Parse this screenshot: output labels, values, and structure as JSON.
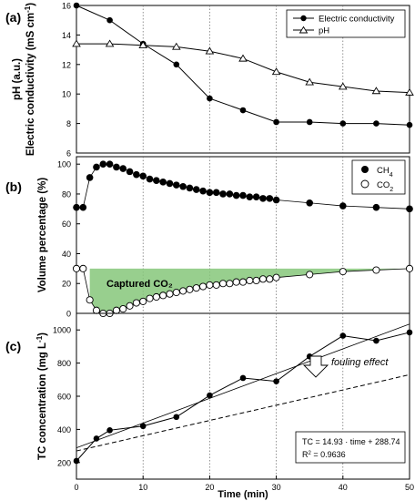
{
  "chart_data": [
    {
      "panel_label": "(a)",
      "type": "line",
      "ylabel": "pH (a.u.)\nElectric conductivity (mS cm⁻¹)",
      "ylabel_lines": [
        "pH (a.u.)",
        "Electric conductivity (mS cm",
        "-1",
        ")"
      ],
      "xlim": [
        0,
        50
      ],
      "ylim": [
        6,
        16
      ],
      "yticks": [
        6,
        8,
        10,
        12,
        14,
        16
      ],
      "grid_x": [
        10,
        20,
        30,
        40
      ],
      "legend": "top-right",
      "series": [
        {
          "name": "Electric conductivity",
          "marker": "filled-circle",
          "x": [
            0,
            5,
            10,
            15,
            20,
            25,
            30,
            35,
            40,
            45,
            50
          ],
          "y": [
            16.0,
            15.0,
            13.4,
            12.0,
            9.7,
            8.9,
            8.1,
            8.1,
            8.0,
            8.0,
            7.9
          ]
        },
        {
          "name": "pH",
          "marker": "open-triangle",
          "x": [
            0,
            5,
            10,
            15,
            20,
            25,
            30,
            35,
            40,
            45,
            50
          ],
          "y": [
            13.4,
            13.4,
            13.3,
            13.2,
            12.9,
            12.4,
            11.5,
            10.8,
            10.5,
            10.2,
            10.1
          ]
        }
      ]
    },
    {
      "panel_label": "(b)",
      "type": "scatter",
      "ylabel": "Volume percentage (%)",
      "xlim": [
        0,
        50
      ],
      "ylim": [
        0,
        105
      ],
      "yticks": [
        0,
        20,
        40,
        60,
        80,
        100
      ],
      "grid_x": [
        10,
        20,
        30,
        40
      ],
      "legend": "top-right",
      "annotation": "Captured CO₂",
      "series": [
        {
          "name": "CH₄",
          "name_base": "CH",
          "name_sub": "4",
          "marker": "filled-circle",
          "x": [
            0,
            1,
            2,
            3,
            4,
            5,
            6,
            7,
            8,
            9,
            10,
            11,
            12,
            13,
            14,
            15,
            16,
            17,
            18,
            19,
            20,
            21,
            22,
            23,
            24,
            25,
            26,
            27,
            28,
            29,
            30,
            35,
            40,
            45,
            50
          ],
          "y": [
            71,
            71,
            91,
            98,
            100,
            100,
            98,
            97,
            95,
            93,
            92,
            90,
            89,
            88,
            87,
            86,
            85,
            84,
            83,
            82,
            81,
            81,
            80,
            80,
            79,
            79,
            78,
            78,
            77,
            77,
            76,
            74,
            72,
            71,
            70
          ]
        },
        {
          "name": "CO₂",
          "name_base": "CO",
          "name_sub": "2",
          "marker": "open-circle",
          "x": [
            0,
            1,
            2,
            3,
            4,
            5,
            6,
            7,
            8,
            9,
            10,
            11,
            12,
            13,
            14,
            15,
            16,
            17,
            18,
            19,
            20,
            21,
            22,
            23,
            24,
            25,
            26,
            27,
            28,
            29,
            30,
            35,
            40,
            45,
            50
          ],
          "y": [
            30,
            30,
            9,
            2,
            0,
            0,
            2,
            3,
            5,
            7,
            8,
            10,
            11,
            12,
            13,
            14,
            15,
            16,
            17,
            18,
            19,
            19,
            20,
            20,
            21,
            21,
            22,
            22,
            23,
            23,
            24,
            26,
            28,
            29,
            30
          ]
        }
      ]
    },
    {
      "panel_label": "(c)",
      "type": "line",
      "ylabel": "TC concentration (mg L⁻¹)",
      "ylabel_lines": [
        "TC concentration (mg L",
        "-1",
        ")"
      ],
      "xlabel": "Time (min)",
      "xlim": [
        0,
        50
      ],
      "ylim": [
        100,
        1100
      ],
      "yticks": [
        200,
        400,
        600,
        800,
        1000
      ],
      "xticks": [
        0,
        10,
        20,
        30,
        40,
        50
      ],
      "grid_x": [
        10,
        20,
        30,
        40
      ],
      "annotation": "fouling effect",
      "regression_box": {
        "equation": "TC = 14.93 · time + 288.74",
        "r2_label": "R",
        "r2_exp": "2",
        "r2_value": " = 0.9636"
      },
      "series": [
        {
          "marker": "filled-circle",
          "x": [
            0,
            3,
            5,
            10,
            15,
            20,
            25,
            30,
            35,
            40,
            45,
            50
          ],
          "y": [
            210,
            345,
            395,
            420,
            475,
            605,
            710,
            690,
            840,
            965,
            935,
            985
          ]
        },
        {
          "style": "solid-thin",
          "x": [
            0,
            50
          ],
          "y": [
            288.74,
            1035.24
          ]
        },
        {
          "style": "dashed",
          "x": [
            0,
            50
          ],
          "y": [
            270,
            730
          ]
        }
      ]
    }
  ]
}
